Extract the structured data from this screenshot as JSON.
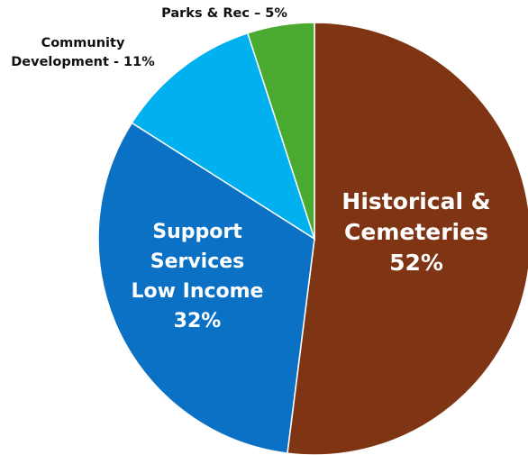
{
  "chart_data": {
    "type": "pie",
    "title": "",
    "start": "top, clockwise",
    "slices": [
      {
        "name": "Historical & Cemeteries",
        "value": 52,
        "color": "#7f3513",
        "label_lines": [
          "Historical &",
          "Cemeteries",
          "52%"
        ],
        "label_position": "inside"
      },
      {
        "name": "Support Services Low Income",
        "value": 32,
        "color": "#0a71c4",
        "label_lines": [
          "Support",
          "Services",
          "Low Income",
          "32%"
        ],
        "label_position": "inside"
      },
      {
        "name": "Community Development",
        "value": 11,
        "color": "#00b0ef",
        "label_lines": [
          "Community",
          "Development - 11%"
        ],
        "label_position": "outside"
      },
      {
        "name": "Parks & Rec",
        "value": 5,
        "color": "#4aa92f",
        "label_lines": [
          "Parks & Rec – 5%"
        ],
        "label_position": "outside"
      }
    ]
  }
}
